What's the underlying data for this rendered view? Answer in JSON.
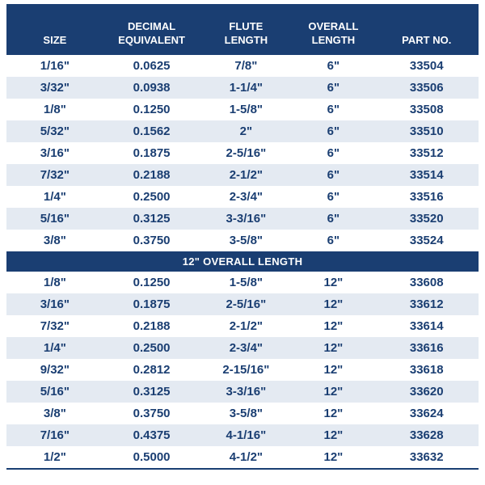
{
  "colors": {
    "header_bg": "#1a3e72",
    "stripe_bg": "#e4eaf2",
    "text": "#1a3e72",
    "header_text": "#ffffff"
  },
  "table": {
    "columns": [
      "SIZE",
      "DECIMAL EQUIVALENT",
      "FLUTE LENGTH",
      "OVERALL LENGTH",
      "PART NO."
    ],
    "sections": [
      {
        "divider": null,
        "rows": [
          [
            "1/16\"",
            "0.0625",
            "7/8\"",
            "6\"",
            "33504"
          ],
          [
            "3/32\"",
            "0.0938",
            "1-1/4\"",
            "6\"",
            "33506"
          ],
          [
            "1/8\"",
            "0.1250",
            "1-5/8\"",
            "6\"",
            "33508"
          ],
          [
            "5/32\"",
            "0.1562",
            "2\"",
            "6\"",
            "33510"
          ],
          [
            "3/16\"",
            "0.1875",
            "2-5/16\"",
            "6\"",
            "33512"
          ],
          [
            "7/32\"",
            "0.2188",
            "2-1/2\"",
            "6\"",
            "33514"
          ],
          [
            "1/4\"",
            "0.2500",
            "2-3/4\"",
            "6\"",
            "33516"
          ],
          [
            "5/16\"",
            "0.3125",
            "3-3/16\"",
            "6\"",
            "33520"
          ],
          [
            "3/8\"",
            "0.3750",
            "3-5/8\"",
            "6\"",
            "33524"
          ]
        ]
      },
      {
        "divider": "12\" OVERALL LENGTH",
        "rows": [
          [
            "1/8\"",
            "0.1250",
            "1-5/8\"",
            "12\"",
            "33608"
          ],
          [
            "3/16\"",
            "0.1875",
            "2-5/16\"",
            "12\"",
            "33612"
          ],
          [
            "7/32\"",
            "0.2188",
            "2-1/2\"",
            "12\"",
            "33614"
          ],
          [
            "1/4\"",
            "0.2500",
            "2-3/4\"",
            "12\"",
            "33616"
          ],
          [
            "9/32\"",
            "0.2812",
            "2-15/16\"",
            "12\"",
            "33618"
          ],
          [
            "5/16\"",
            "0.3125",
            "3-3/16\"",
            "12\"",
            "33620"
          ],
          [
            "3/8\"",
            "0.3750",
            "3-5/8\"",
            "12\"",
            "33624"
          ],
          [
            "7/16\"",
            "0.4375",
            "4-1/16\"",
            "12\"",
            "33628"
          ],
          [
            "1/2\"",
            "0.5000",
            "4-1/2\"",
            "12\"",
            "33632"
          ]
        ]
      }
    ]
  }
}
